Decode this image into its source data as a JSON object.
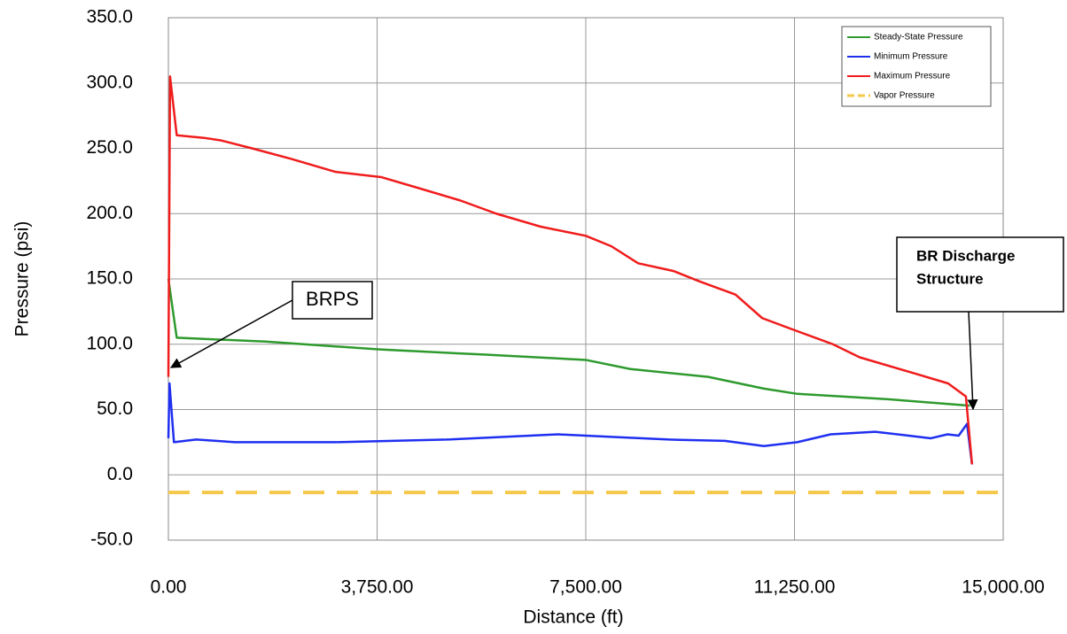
{
  "chart_data": {
    "type": "line",
    "xlabel": "Distance (ft)",
    "ylabel": "Pressure (psi)",
    "xlim": [
      0,
      15000
    ],
    "ylim": [
      -50,
      350
    ],
    "xticks": [
      {
        "value": 0,
        "label": "0.00"
      },
      {
        "value": 3750,
        "label": "3,750.00"
      },
      {
        "value": 7500,
        "label": "7,500.00"
      },
      {
        "value": 11250,
        "label": "11,250.00"
      },
      {
        "value": 15000,
        "label": "15,000.00"
      }
    ],
    "yticks": [
      {
        "value": -50,
        "label": "-50.0"
      },
      {
        "value": 0,
        "label": "0.0"
      },
      {
        "value": 50,
        "label": "50.0"
      },
      {
        "value": 100,
        "label": "100.0"
      },
      {
        "value": 150,
        "label": "150.0"
      },
      {
        "value": 200,
        "label": "200.0"
      },
      {
        "value": 250,
        "label": "250.0"
      },
      {
        "value": 300,
        "label": "300.0"
      },
      {
        "value": 350,
        "label": "350.0"
      }
    ],
    "grid": true,
    "legend": "upper right",
    "series": [
      {
        "name": "Steady-State Pressure",
        "color": "#2e9a2e",
        "x": [
          0,
          150,
          1750,
          3800,
          5700,
          7500,
          8300,
          9700,
          10700,
          11300,
          12900,
          14400
        ],
        "values": [
          150,
          105,
          102,
          96,
          92,
          88,
          81,
          75,
          66,
          62,
          58,
          53
        ]
      },
      {
        "name": "Minimum Pressure",
        "color": "#1f2ff0",
        "x": [
          0,
          20,
          100,
          500,
          1200,
          3000,
          5000,
          7000,
          8000,
          9000,
          10000,
          10700,
          11300,
          11900,
          12700,
          13300,
          13700,
          14000,
          14200,
          14350,
          14440
        ],
        "values": [
          28,
          70,
          25,
          27,
          25,
          25,
          27,
          31,
          29,
          27,
          26,
          22,
          25,
          31,
          33,
          30,
          28,
          31,
          30,
          39,
          8
        ]
      },
      {
        "name": "Maximum Pressure",
        "color": "#f01c1c",
        "x": [
          0,
          30,
          150,
          640,
          950,
          1500,
          2200,
          3000,
          3820,
          4460,
          5250,
          5890,
          6690,
          7500,
          7960,
          8440,
          9080,
          9550,
          10190,
          10670,
          11300,
          11940,
          12420,
          13380,
          14010,
          14330,
          14440
        ],
        "values": [
          75,
          305,
          260,
          258,
          256,
          250,
          242,
          232,
          228,
          220,
          210,
          200,
          190,
          183,
          175,
          162,
          156,
          148,
          138,
          120,
          110,
          100,
          90,
          78,
          70,
          60,
          8
        ]
      },
      {
        "name": "Vapor Pressure",
        "color": "#f5c84a",
        "dashed": true,
        "x": [
          0,
          15000
        ],
        "values": [
          -13.5,
          -13.5
        ]
      }
    ],
    "annotations": [
      {
        "lines": [
          "BRPS"
        ]
      },
      {
        "lines": [
          "BR Discharge",
          "Structure"
        ]
      }
    ]
  }
}
